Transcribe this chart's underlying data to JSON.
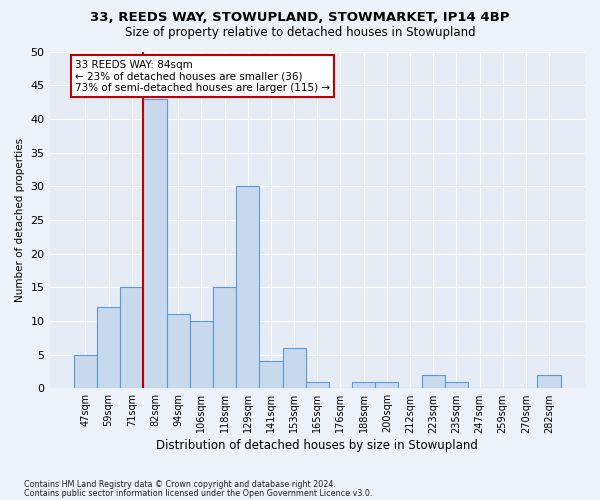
{
  "title1": "33, REEDS WAY, STOWUPLAND, STOWMARKET, IP14 4BP",
  "title2": "Size of property relative to detached houses in Stowupland",
  "xlabel": "Distribution of detached houses by size in Stowupland",
  "ylabel": "Number of detached properties",
  "categories": [
    "47sqm",
    "59sqm",
    "71sqm",
    "82sqm",
    "94sqm",
    "106sqm",
    "118sqm",
    "129sqm",
    "141sqm",
    "153sqm",
    "165sqm",
    "176sqm",
    "188sqm",
    "200sqm",
    "212sqm",
    "223sqm",
    "235sqm",
    "247sqm",
    "259sqm",
    "270sqm",
    "282sqm"
  ],
  "values": [
    5,
    12,
    15,
    43,
    11,
    10,
    15,
    30,
    4,
    6,
    1,
    0,
    1,
    1,
    0,
    2,
    1,
    0,
    0,
    0,
    2
  ],
  "bar_color": "#c9d9ed",
  "bar_edge_color": "#5b9bd5",
  "vline_x": 2.5,
  "vline_color": "#c00000",
  "annotation_line1": "33 REEDS WAY: 84sqm",
  "annotation_line2": "← 23% of detached houses are smaller (36)",
  "annotation_line3": "73% of semi-detached houses are larger (115) →",
  "annotation_box_facecolor": "#ffffff",
  "annotation_box_edgecolor": "#c00000",
  "ylim": [
    0,
    50
  ],
  "yticks": [
    0,
    5,
    10,
    15,
    20,
    25,
    30,
    35,
    40,
    45,
    50
  ],
  "footer1": "Contains HM Land Registry data © Crown copyright and database right 2024.",
  "footer2": "Contains public sector information licensed under the Open Government Licence v3.0.",
  "fig_facecolor": "#edf2f8",
  "axes_facecolor": "#e5ecf5"
}
